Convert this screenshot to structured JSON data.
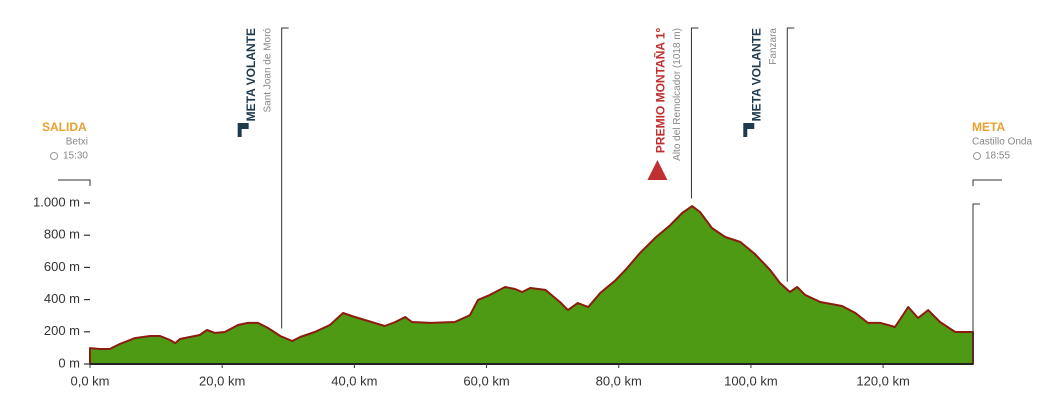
{
  "chart_data": {
    "type": "area",
    "fill": "#4f9a14",
    "stroke": "#8a1c10",
    "xlim": [
      0,
      133.6
    ],
    "ylim": [
      0,
      1000
    ],
    "xticks": [
      {
        "value": 0,
        "label": "0,0 km"
      },
      {
        "value": 20,
        "label": "20,0 km"
      },
      {
        "value": 40,
        "label": "40,0 km"
      },
      {
        "value": 60,
        "label": "60,0 km"
      },
      {
        "value": 80,
        "label": "80,0 km"
      },
      {
        "value": 100,
        "label": "100,0 km"
      },
      {
        "value": 120,
        "label": "120,0 km"
      }
    ],
    "yticks": [
      {
        "value": 0,
        "label": "0 m"
      },
      {
        "value": 200,
        "label": "200 m"
      },
      {
        "value": 400,
        "label": "400 m"
      },
      {
        "value": 600,
        "label": "600 m"
      },
      {
        "value": 800,
        "label": "800 m"
      },
      {
        "value": 1000,
        "label": "1.000 m"
      }
    ],
    "x": [
      0,
      1.5,
      3,
      4.5,
      6.8,
      9.1,
      10.6,
      12.1,
      12.9,
      13.6,
      15.1,
      16.6,
      17.7,
      18.9,
      20.4,
      22.4,
      23.9,
      25.4,
      26.9,
      28.8,
      30.6,
      31.8,
      34.0,
      36.3,
      38.3,
      39.6,
      41.6,
      44.6,
      46.2,
      47.7,
      48.7,
      51.5,
      55.2,
      57.5,
      58.7,
      60.5,
      62.8,
      64.3,
      65.4,
      66.6,
      68.9,
      71.1,
      72.3,
      73.8,
      75.4,
      77.2,
      79.4,
      81.0,
      83.2,
      85.5,
      87.8,
      89.6,
      91.1,
      92.3,
      94.1,
      96.1,
      98.4,
      100.6,
      102.9,
      104.4,
      105.9,
      107.0,
      108.2,
      110.5,
      113.8,
      115.8,
      117.7,
      119.6,
      121.8,
      123.8,
      125.3,
      126.8,
      128.6,
      130.9,
      133.6
    ],
    "values": [
      99,
      93,
      93,
      124,
      161,
      174,
      174,
      149,
      130,
      155,
      168,
      180,
      211,
      193,
      199,
      242,
      255,
      255,
      224,
      174,
      143,
      168,
      199,
      242,
      317,
      298,
      273,
      236,
      261,
      292,
      261,
      255,
      261,
      304,
      398,
      429,
      478,
      466,
      447,
      472,
      460,
      385,
      335,
      379,
      354,
      441,
      516,
      584,
      689,
      783,
      863,
      938,
      981,
      944,
      845,
      789,
      758,
      683,
      584,
      503,
      447,
      478,
      429,
      385,
      360,
      317,
      255,
      255,
      230,
      354,
      286,
      335,
      261,
      199,
      199
    ],
    "annotations": [
      {
        "label": "SALIDA",
        "place": "Betxi",
        "time": "15:30",
        "km": 0,
        "marker": "start",
        "color": "#e8a030"
      },
      {
        "label": "META VOLANTE",
        "place": "Sant Joan de Moró",
        "km": 29,
        "marker": "flag",
        "color": "#1e3a4f"
      },
      {
        "label": "PREMIO MONTAÑA 1º",
        "place": "Alto del Remolcador (1018 m)",
        "km": 91,
        "marker": "triangle",
        "color": "#c03030"
      },
      {
        "label": "META VOLANTE",
        "place": "Fanzara",
        "km": 105.5,
        "marker": "flag",
        "color": "#1e3a4f"
      },
      {
        "label": "META",
        "place": "Castillo Onda",
        "time": "18:55",
        "km": 133.6,
        "marker": "finish",
        "color": "#e8a030"
      }
    ]
  }
}
